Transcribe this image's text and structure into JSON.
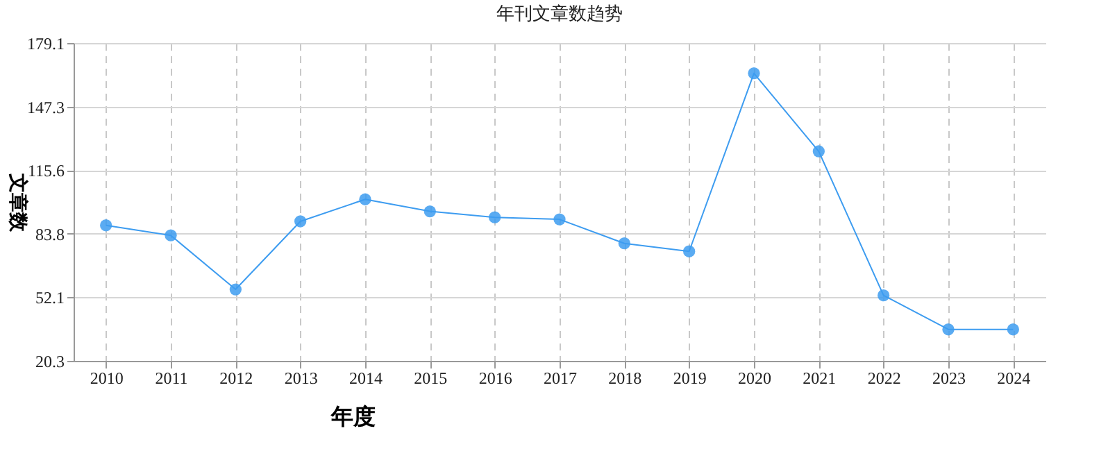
{
  "chart_data": {
    "type": "line",
    "title": "年刊文章数趋势",
    "xlabel": "年度",
    "ylabel": "文章数",
    "categories": [
      "2010",
      "2011",
      "2012",
      "2013",
      "2014",
      "2015",
      "2016",
      "2017",
      "2018",
      "2019",
      "2020",
      "2021",
      "2022",
      "2023",
      "2024"
    ],
    "series": [
      {
        "color": "#3d9cf0",
        "values": [
          88,
          83,
          56,
          90,
          101,
          95,
          92,
          91,
          79,
          75,
          164,
          125,
          53,
          36,
          36
        ]
      }
    ],
    "ylim": [
      20.3,
      179.1
    ],
    "yticks": [
      20.3,
      52.1,
      83.8,
      115.6,
      147.3,
      179.1
    ],
    "grid": true,
    "marker": "circle",
    "line_style": "solid"
  }
}
